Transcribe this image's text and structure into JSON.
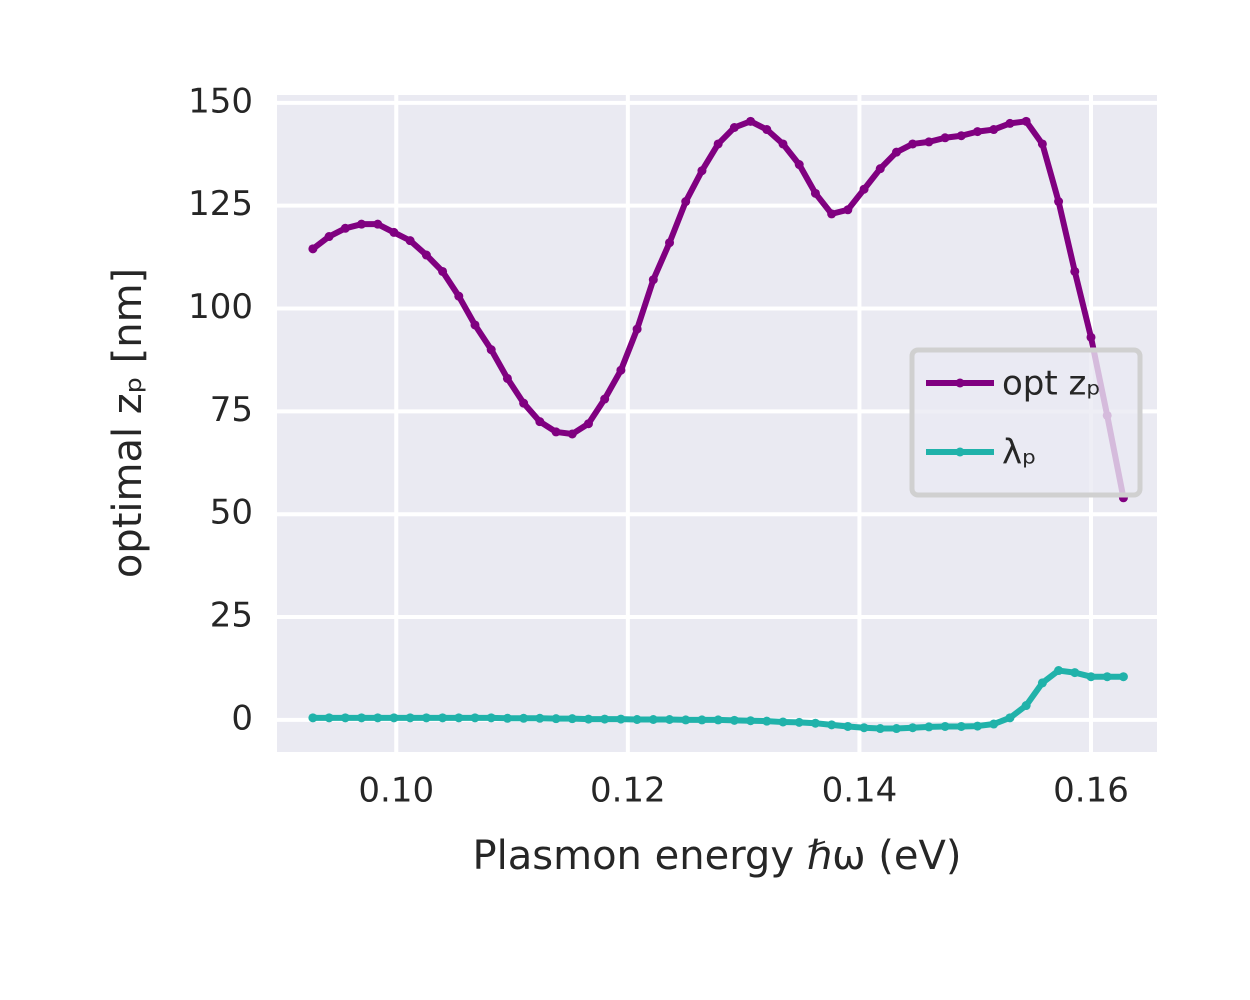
{
  "chart_data": {
    "type": "line",
    "x_label": "Plasmon energy ℏω (eV)",
    "y_label": "optimal zₚ [nm]",
    "x": [
      0.0928,
      0.0942,
      0.0956,
      0.097,
      0.0984,
      0.0998,
      0.1012,
      0.1026,
      0.104,
      0.1054,
      0.1068,
      0.1082,
      0.1096,
      0.111,
      0.1124,
      0.1138,
      0.1152,
      0.1166,
      0.118,
      0.1194,
      0.1208,
      0.1222,
      0.1236,
      0.125,
      0.1264,
      0.1278,
      0.1292,
      0.1306,
      0.132,
      0.1334,
      0.1348,
      0.1362,
      0.1376,
      0.139,
      0.1404,
      0.1418,
      0.1432,
      0.1446,
      0.146,
      0.1474,
      0.1488,
      0.1502,
      0.1516,
      0.153,
      0.1544,
      0.1558,
      0.1572,
      0.1586,
      0.16,
      0.1614,
      0.1628
    ],
    "series": [
      {
        "name": "opt zₚ",
        "color": "#800080",
        "values": [
          114.5,
          117.5,
          119.5,
          120.5,
          120.5,
          118.5,
          116.5,
          113,
          109,
          103,
          96,
          90,
          83,
          77,
          72.5,
          70,
          69.5,
          72,
          78,
          85,
          95,
          107,
          116,
          126,
          133.5,
          140,
          144,
          145.5,
          143.5,
          140,
          135,
          128,
          123,
          124,
          129,
          134,
          138,
          140,
          140.5,
          141.5,
          142,
          143,
          143.5,
          145,
          145.5,
          140,
          126,
          109,
          93,
          74,
          54
        ]
      },
      {
        "name": "λₚ",
        "color": "#20b2aa",
        "values": [
          0.5,
          0.5,
          0.5,
          0.5,
          0.5,
          0.5,
          0.5,
          0.5,
          0.5,
          0.5,
          0.5,
          0.5,
          0.4,
          0.4,
          0.4,
          0.3,
          0.3,
          0.2,
          0.2,
          0.2,
          0.1,
          0.1,
          0.1,
          0,
          0,
          0,
          -0.1,
          -0.2,
          -0.3,
          -0.5,
          -0.6,
          -0.8,
          -1.2,
          -1.6,
          -1.9,
          -2.1,
          -2.1,
          -1.9,
          -1.7,
          -1.6,
          -1.6,
          -1.5,
          -1.0,
          0.5,
          3.5,
          9,
          12,
          11.5,
          10.5,
          10.5,
          10.5
        ]
      }
    ],
    "xlim": [
      0.0897,
      0.1657
    ],
    "ylim": [
      -7.8,
      151.9
    ],
    "xticks": [
      {
        "value": 0.1,
        "label": "0.10"
      },
      {
        "value": 0.12,
        "label": "0.12"
      },
      {
        "value": 0.14,
        "label": "0.14"
      },
      {
        "value": 0.16,
        "label": "0.16"
      }
    ],
    "yticks": [
      0,
      25,
      50,
      75,
      100,
      125,
      150
    ],
    "grid": true,
    "legend": "right"
  }
}
